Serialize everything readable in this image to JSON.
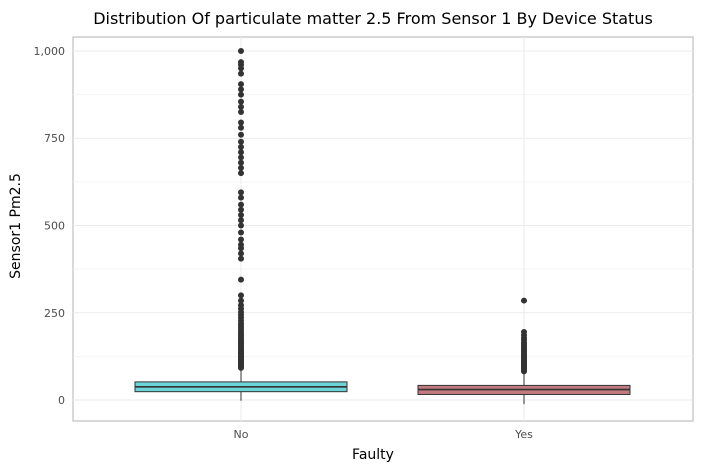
{
  "chart_data": {
    "type": "boxplot",
    "title": "Distribution Of particulate matter 2.5 From Sensor 1 By Device Status",
    "xlabel": "Faulty",
    "ylabel": "Sensor1 Pm2.5",
    "ylim": [
      -60,
      1040
    ],
    "yticks": [
      0,
      250,
      500,
      750,
      1000
    ],
    "ytick_labels": [
      "0",
      "250",
      "500",
      "750",
      "1,000"
    ],
    "grid": true,
    "legend": "none",
    "categories": [
      "No",
      "Yes"
    ],
    "colors": {
      "No": "#6bd5d8",
      "Yes": "#c17a80",
      "outline": "#333333",
      "outlier": "#333333",
      "grid": "#ebebeb",
      "panel_border": "#b3b3b3"
    },
    "boxes": [
      {
        "category": "No",
        "whisker_low": -2,
        "q1": 24,
        "median": 38,
        "q3": 52,
        "whisker_high": 90,
        "outliers": [
          92,
          95,
          98,
          101,
          104,
          107,
          110,
          113,
          116,
          119,
          122,
          125,
          128,
          131,
          134,
          137,
          140,
          143,
          146,
          150,
          154,
          158,
          162,
          166,
          170,
          175,
          180,
          185,
          190,
          196,
          202,
          208,
          214,
          220,
          228,
          236,
          244,
          252,
          262,
          272,
          285,
          300,
          345,
          405,
          420,
          435,
          445,
          460,
          480,
          500,
          515,
          530,
          545,
          560,
          580,
          595,
          650,
          665,
          680,
          695,
          710,
          725,
          740,
          760,
          780,
          795,
          825,
          840,
          855,
          875,
          890,
          905,
          935,
          950,
          960,
          968,
          1000
        ]
      },
      {
        "category": "Yes",
        "whisker_low": -12,
        "q1": 16,
        "median": 30,
        "q3": 42,
        "whisker_high": 80,
        "outliers": [
          82,
          85,
          88,
          91,
          94,
          97,
          100,
          103,
          106,
          109,
          112,
          115,
          118,
          121,
          124,
          127,
          130,
          134,
          138,
          142,
          146,
          150,
          155,
          160,
          165,
          172,
          178,
          186,
          195,
          285
        ]
      }
    ]
  }
}
